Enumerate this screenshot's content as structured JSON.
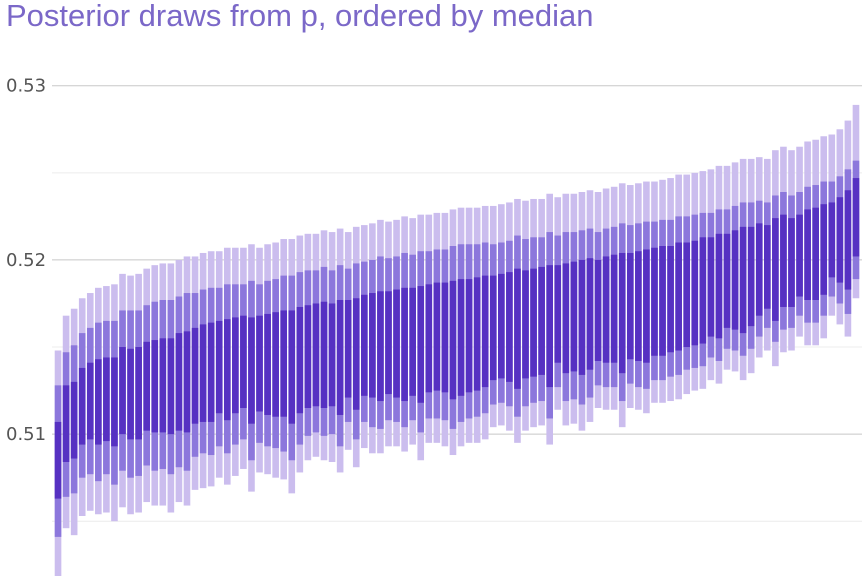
{
  "title": "Posterior draws from p, ordered by median",
  "colors": {
    "title": "#7b68c8",
    "outer_interval": "#cbbdee",
    "middle_interval": "#8c77dc",
    "inner_interval": "#5631c2",
    "major_grid": "#c8c8c8",
    "minor_grid": "#ececec",
    "tick_label": "#555555"
  },
  "chart_data": {
    "type": "interval",
    "ylim": [
      0.5022,
      0.5332
    ],
    "yticks": [
      0.51,
      0.52,
      0.53
    ],
    "yticklabels": [
      "0.51",
      "0.52",
      "0.53"
    ],
    "minor_yticks": [
      0.505,
      0.515,
      0.525
    ],
    "grid": true,
    "legend": "none",
    "intervals": [
      {
        "name": "outer",
        "lo": [
          0.5018,
          0.5046,
          0.5042,
          0.5053,
          0.5056,
          0.5054,
          0.5055,
          0.505,
          0.5058,
          0.5054,
          0.5055,
          0.5061,
          0.5059,
          0.5059,
          0.5055,
          0.5061,
          0.5059,
          0.5068,
          0.5069,
          0.507,
          0.5075,
          0.5071,
          0.5076,
          0.508,
          0.5067,
          0.5078,
          0.5077,
          0.5075,
          0.5074,
          0.5066,
          0.5078,
          0.5085,
          0.5087,
          0.5085,
          0.5084,
          0.5078,
          0.5091,
          0.5081,
          0.5092,
          0.5089,
          0.5089,
          0.5093,
          0.5093,
          0.509,
          0.5094,
          0.5085,
          0.5095,
          0.5095,
          0.5093,
          0.5088,
          0.5093,
          0.5095,
          0.5095,
          0.5097,
          0.5104,
          0.5105,
          0.5102,
          0.5095,
          0.5102,
          0.5104,
          0.5105,
          0.5094,
          0.5114,
          0.5105,
          0.5106,
          0.5102,
          0.5107,
          0.5115,
          0.5114,
          0.5114,
          0.5104,
          0.5115,
          0.5114,
          0.5112,
          0.5118,
          0.5118,
          0.5119,
          0.512,
          0.5123,
          0.5125,
          0.5126,
          0.5131,
          0.5129,
          0.5137,
          0.5136,
          0.5131,
          0.5135,
          0.5144,
          0.5148,
          0.5139,
          0.5147,
          0.5148,
          0.5156,
          0.5151,
          0.5151,
          0.5155,
          0.5168,
          0.5163,
          0.5156,
          0.5178
        ]
      },
      {
        "name": "middle",
        "lo": [
          0.5041,
          0.5064,
          0.5066,
          0.5075,
          0.5077,
          0.5073,
          0.5077,
          0.5071,
          0.5079,
          0.5075,
          0.5076,
          0.5082,
          0.5079,
          0.508,
          0.5077,
          0.5081,
          0.5079,
          0.5087,
          0.5089,
          0.5088,
          0.5093,
          0.5089,
          0.5094,
          0.5097,
          0.5085,
          0.5095,
          0.5093,
          0.5092,
          0.509,
          0.5085,
          0.5094,
          0.5099,
          0.5101,
          0.5099,
          0.51,
          0.5093,
          0.5107,
          0.5097,
          0.5107,
          0.5104,
          0.5103,
          0.5108,
          0.5107,
          0.5104,
          0.5108,
          0.5101,
          0.5109,
          0.5109,
          0.5108,
          0.5103,
          0.5107,
          0.5109,
          0.511,
          0.5112,
          0.5117,
          0.5118,
          0.5116,
          0.511,
          0.5116,
          0.5118,
          0.5119,
          0.5109,
          0.5127,
          0.5119,
          0.512,
          0.5117,
          0.5121,
          0.5128,
          0.5127,
          0.5127,
          0.5119,
          0.5129,
          0.5127,
          0.5126,
          0.5131,
          0.5131,
          0.5133,
          0.5134,
          0.5137,
          0.5138,
          0.5139,
          0.5144,
          0.5142,
          0.5149,
          0.5148,
          0.5145,
          0.5149,
          0.5156,
          0.5161,
          0.5153,
          0.516,
          0.5161,
          0.5168,
          0.5164,
          0.5164,
          0.5168,
          0.5179,
          0.5175,
          0.5169,
          0.5189
        ],
        "hi": [
          0.5128,
          0.5147,
          0.5151,
          0.5158,
          0.5161,
          0.5164,
          0.5165,
          0.5165,
          0.5171,
          0.5171,
          0.5171,
          0.5174,
          0.5176,
          0.5177,
          0.5177,
          0.5179,
          0.5181,
          0.5181,
          0.5183,
          0.5184,
          0.5184,
          0.5186,
          0.5186,
          0.5186,
          0.5188,
          0.5186,
          0.5188,
          0.5189,
          0.5191,
          0.5191,
          0.5193,
          0.5194,
          0.5194,
          0.5196,
          0.5194,
          0.5197,
          0.5195,
          0.5198,
          0.5199,
          0.52,
          0.5202,
          0.5201,
          0.5202,
          0.5204,
          0.5203,
          0.5205,
          0.5205,
          0.5206,
          0.5206,
          0.5208,
          0.5209,
          0.5209,
          0.5209,
          0.521,
          0.5209,
          0.521,
          0.5211,
          0.5214,
          0.5212,
          0.5213,
          0.5213,
          0.5216,
          0.5214,
          0.5216,
          0.5216,
          0.5217,
          0.5218,
          0.5216,
          0.5218,
          0.5219,
          0.5221,
          0.522,
          0.5221,
          0.5222,
          0.5222,
          0.5223,
          0.5223,
          0.5225,
          0.5225,
          0.5226,
          0.5227,
          0.5227,
          0.5229,
          0.5229,
          0.5231,
          0.5233,
          0.5233,
          0.5234,
          0.5233,
          0.5237,
          0.5239,
          0.5237,
          0.5239,
          0.5242,
          0.5243,
          0.5245,
          0.5245,
          0.5248,
          0.5252,
          0.5257
        ]
      },
      {
        "name": "inner",
        "lo": [
          0.5063,
          0.5084,
          0.5086,
          0.5094,
          0.5097,
          0.5094,
          0.5096,
          0.5093,
          0.51,
          0.5097,
          0.5097,
          0.5102,
          0.5101,
          0.5101,
          0.51,
          0.5102,
          0.5101,
          0.5106,
          0.5107,
          0.5107,
          0.5112,
          0.5108,
          0.5112,
          0.5115,
          0.5106,
          0.5113,
          0.5111,
          0.511,
          0.511,
          0.5106,
          0.5112,
          0.5115,
          0.5116,
          0.5115,
          0.5116,
          0.5111,
          0.5121,
          0.5114,
          0.5122,
          0.5121,
          0.5119,
          0.5123,
          0.5121,
          0.5119,
          0.5122,
          0.5118,
          0.5124,
          0.5125,
          0.5124,
          0.512,
          0.5122,
          0.5124,
          0.5125,
          0.5127,
          0.5131,
          0.5132,
          0.513,
          0.5126,
          0.5132,
          0.5133,
          0.5134,
          0.5127,
          0.5141,
          0.5135,
          0.5136,
          0.5134,
          0.5137,
          0.5142,
          0.5141,
          0.5141,
          0.5135,
          0.5143,
          0.5142,
          0.5141,
          0.5145,
          0.5145,
          0.5147,
          0.5148,
          0.515,
          0.5151,
          0.5152,
          0.5156,
          0.5155,
          0.5161,
          0.516,
          0.5158,
          0.5162,
          0.5168,
          0.5172,
          0.5165,
          0.5173,
          0.5173,
          0.5179,
          0.5177,
          0.5177,
          0.518,
          0.519,
          0.5187,
          0.5183,
          0.5202
        ],
        "hi": [
          0.5107,
          0.5128,
          0.513,
          0.5138,
          0.5141,
          0.5143,
          0.5144,
          0.5144,
          0.515,
          0.5149,
          0.515,
          0.5153,
          0.5154,
          0.5155,
          0.5155,
          0.5158,
          0.5159,
          0.5161,
          0.5163,
          0.5164,
          0.5165,
          0.5166,
          0.5167,
          0.5168,
          0.5167,
          0.5168,
          0.5169,
          0.517,
          0.5171,
          0.5171,
          0.5173,
          0.5174,
          0.5175,
          0.5176,
          0.5175,
          0.5177,
          0.5177,
          0.5178,
          0.518,
          0.5181,
          0.5182,
          0.5182,
          0.5183,
          0.5184,
          0.5184,
          0.5185,
          0.5186,
          0.5187,
          0.5187,
          0.5188,
          0.5189,
          0.5189,
          0.519,
          0.5191,
          0.5191,
          0.5192,
          0.5193,
          0.5195,
          0.5194,
          0.5195,
          0.5196,
          0.5197,
          0.5197,
          0.5198,
          0.5199,
          0.52,
          0.5201,
          0.52,
          0.5202,
          0.5203,
          0.5204,
          0.5204,
          0.5205,
          0.5206,
          0.5207,
          0.5208,
          0.5208,
          0.521,
          0.521,
          0.5211,
          0.5213,
          0.5213,
          0.5215,
          0.5215,
          0.5217,
          0.5219,
          0.5219,
          0.5221,
          0.522,
          0.5224,
          0.5226,
          0.5224,
          0.5226,
          0.5229,
          0.523,
          0.5232,
          0.5233,
          0.5236,
          0.524,
          0.5247
        ]
      }
    ],
    "outer_hi": [
      0.5148,
      0.5168,
      0.5172,
      0.5178,
      0.5181,
      0.5184,
      0.5185,
      0.5186,
      0.5192,
      0.5191,
      0.5192,
      0.5195,
      0.5197,
      0.5198,
      0.5198,
      0.52,
      0.5202,
      0.5202,
      0.5204,
      0.5205,
      0.5205,
      0.5207,
      0.5207,
      0.5207,
      0.5209,
      0.5207,
      0.5209,
      0.521,
      0.5212,
      0.5212,
      0.5214,
      0.5215,
      0.5215,
      0.5217,
      0.5216,
      0.5218,
      0.5216,
      0.5219,
      0.522,
      0.5221,
      0.5223,
      0.5222,
      0.5223,
      0.5225,
      0.5224,
      0.5226,
      0.5226,
      0.5227,
      0.5227,
      0.5229,
      0.523,
      0.523,
      0.523,
      0.5231,
      0.5231,
      0.5232,
      0.5233,
      0.5235,
      0.5234,
      0.5235,
      0.5235,
      0.5238,
      0.5236,
      0.5238,
      0.5238,
      0.5239,
      0.524,
      0.5239,
      0.5241,
      0.5242,
      0.5244,
      0.5243,
      0.5244,
      0.5245,
      0.5245,
      0.5246,
      0.5247,
      0.5249,
      0.5249,
      0.525,
      0.5251,
      0.5252,
      0.5254,
      0.5254,
      0.5256,
      0.5258,
      0.5258,
      0.5259,
      0.5258,
      0.5263,
      0.5265,
      0.5263,
      0.5265,
      0.5268,
      0.5269,
      0.5271,
      0.5272,
      0.5275,
      0.528,
      0.5289
    ]
  }
}
